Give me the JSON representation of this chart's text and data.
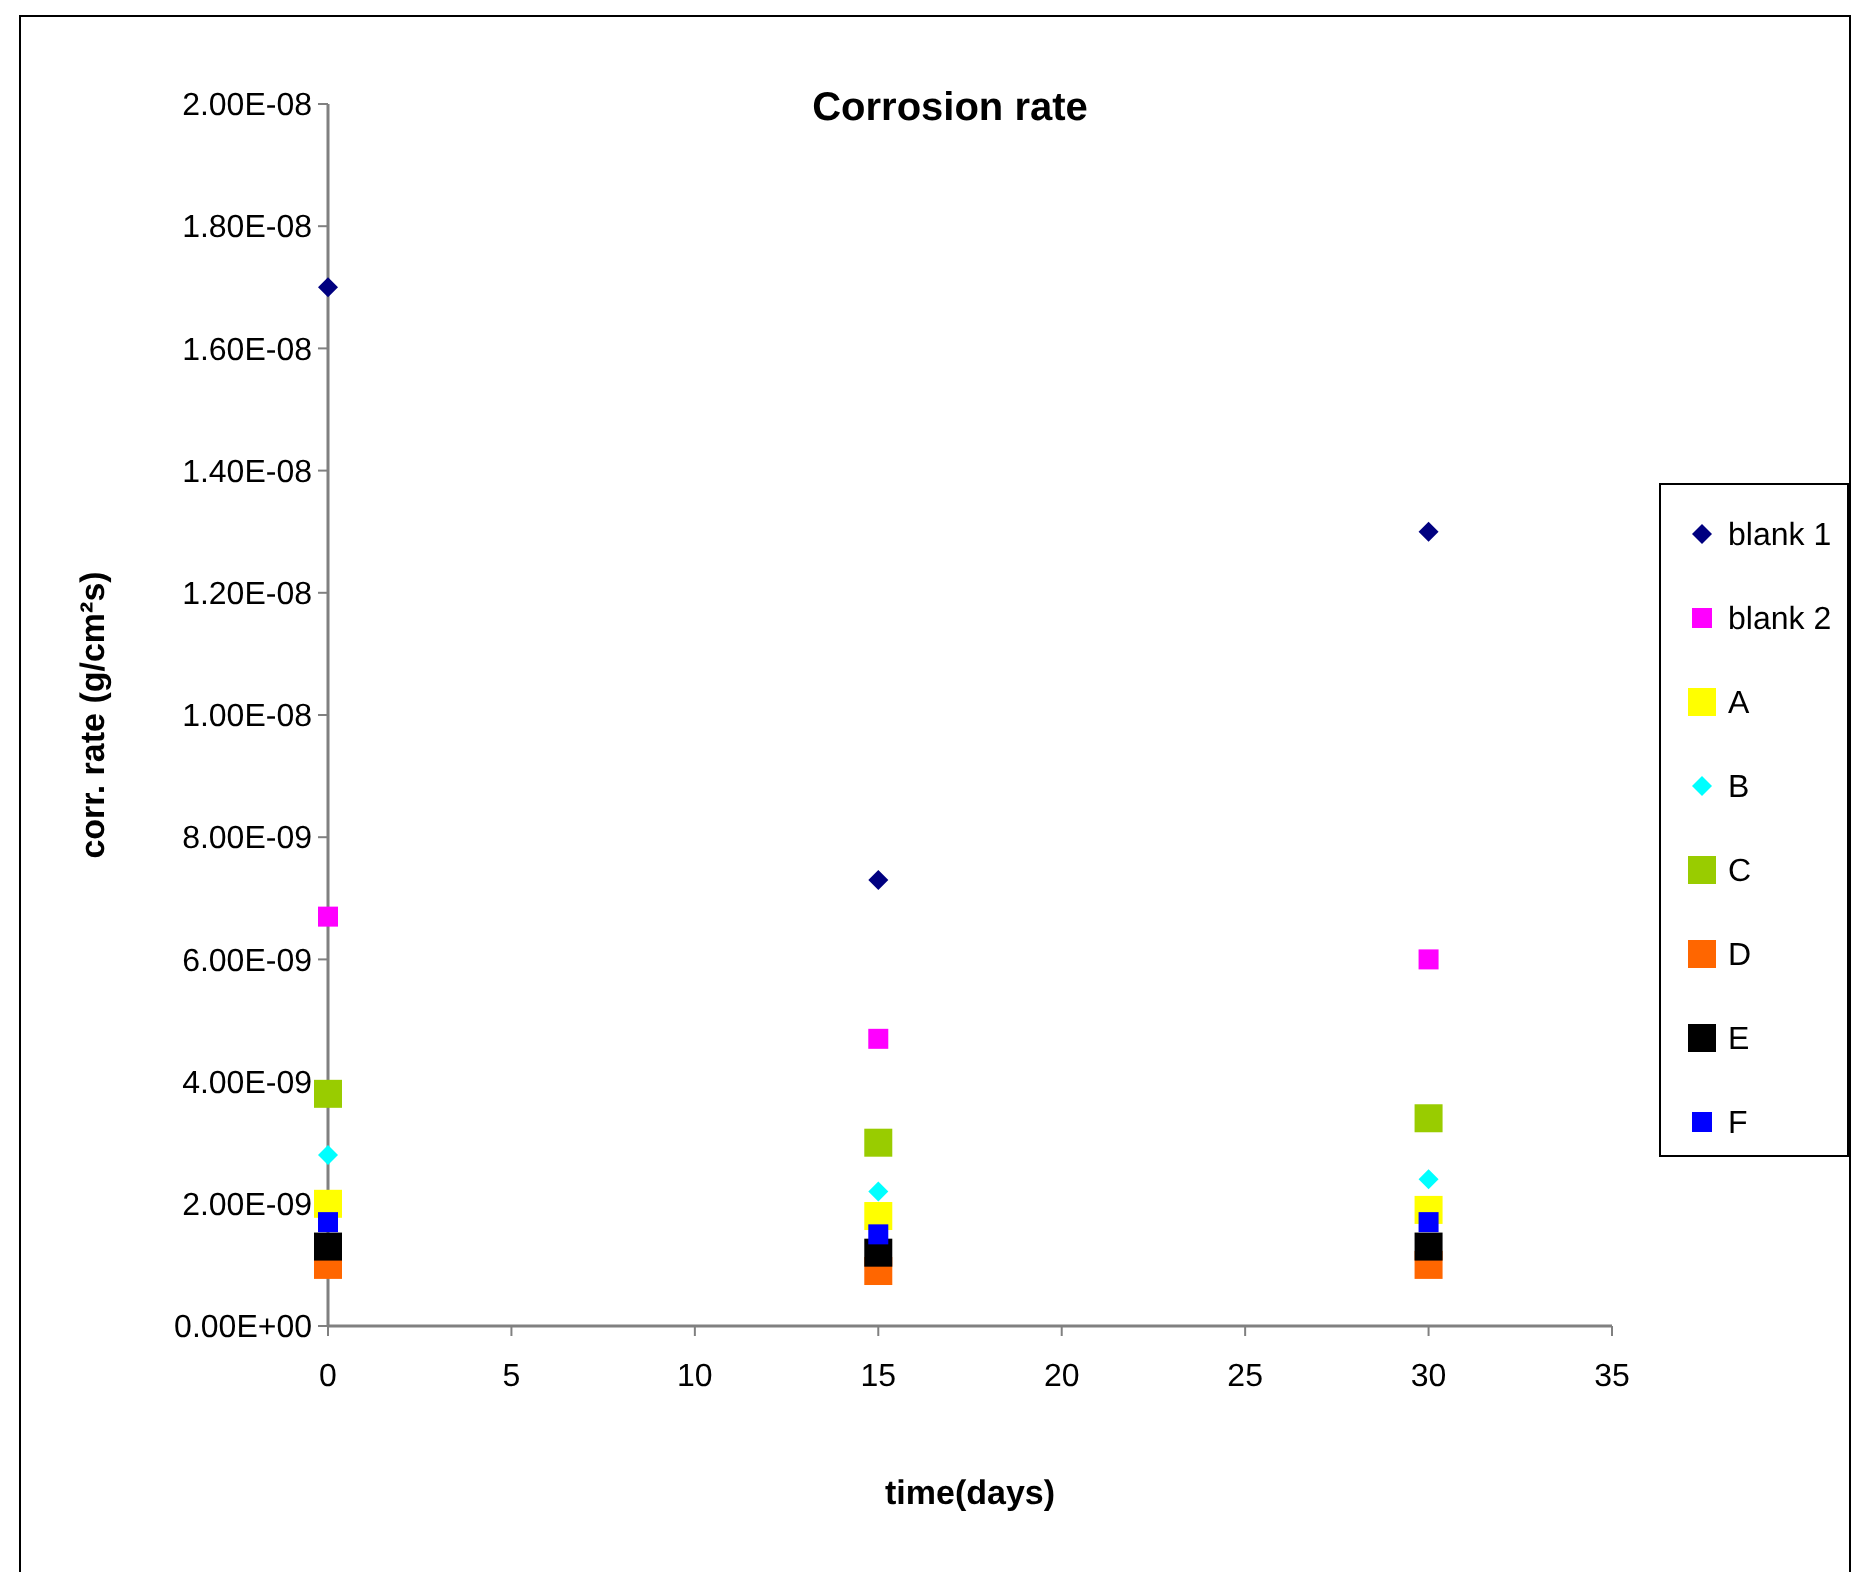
{
  "chart_data": {
    "type": "scatter",
    "title": "Corrosion rate",
    "xlabel": "time(days)",
    "ylabel": "corr. rate (g/cm²s)",
    "x": [
      0,
      15,
      30
    ],
    "series": [
      {
        "name": "blank 1",
        "color": "#000080",
        "marker": "diamond",
        "values": [
          1.7e-08,
          7.3e-09,
          1.3e-08
        ]
      },
      {
        "name": "blank 2",
        "color": "#ff00ff",
        "marker": "square",
        "values": [
          6.7e-09,
          4.7e-09,
          6e-09
        ]
      },
      {
        "name": "A",
        "color": "#ffff00",
        "marker": "square",
        "values": [
          2e-09,
          1.8e-09,
          1.9e-09
        ]
      },
      {
        "name": "B",
        "color": "#00ffff",
        "marker": "diamond",
        "values": [
          2.8e-09,
          2.2e-09,
          2.4e-09
        ]
      },
      {
        "name": "C",
        "color": "#99cc00",
        "marker": "square",
        "values": [
          3.8e-09,
          3e-09,
          3.4e-09
        ]
      },
      {
        "name": "D",
        "color": "#ff6600",
        "marker": "square",
        "values": [
          1e-09,
          9e-10,
          1e-09
        ]
      },
      {
        "name": "E",
        "color": "#000000",
        "marker": "square",
        "values": [
          1.3e-09,
          1.2e-09,
          1.3e-09
        ]
      },
      {
        "name": "F",
        "color": "#0000ff",
        "marker": "square",
        "values": [
          1.7e-09,
          1.5e-09,
          1.7e-09
        ]
      }
    ],
    "xlim": [
      0,
      35
    ],
    "xticks": [
      0,
      5,
      10,
      15,
      20,
      25,
      30,
      35
    ],
    "ylim": [
      0,
      2e-08
    ],
    "yticks": [
      {
        "value": 0,
        "label": "0.00E+00"
      },
      {
        "value": 2e-09,
        "label": "2.00E-09"
      },
      {
        "value": 4e-09,
        "label": "4.00E-09"
      },
      {
        "value": 6e-09,
        "label": "6.00E-09"
      },
      {
        "value": 8e-09,
        "label": "8.00E-09"
      },
      {
        "value": 1e-08,
        "label": "1.00E-08"
      },
      {
        "value": 1.2e-08,
        "label": "1.20E-08"
      },
      {
        "value": 1.4e-08,
        "label": "1.40E-08"
      },
      {
        "value": 1.6e-08,
        "label": "1.60E-08"
      },
      {
        "value": 1.8e-08,
        "label": "1.80E-08"
      },
      {
        "value": 2e-08,
        "label": "2.00E-08"
      }
    ],
    "grid": false,
    "legend": "right"
  }
}
